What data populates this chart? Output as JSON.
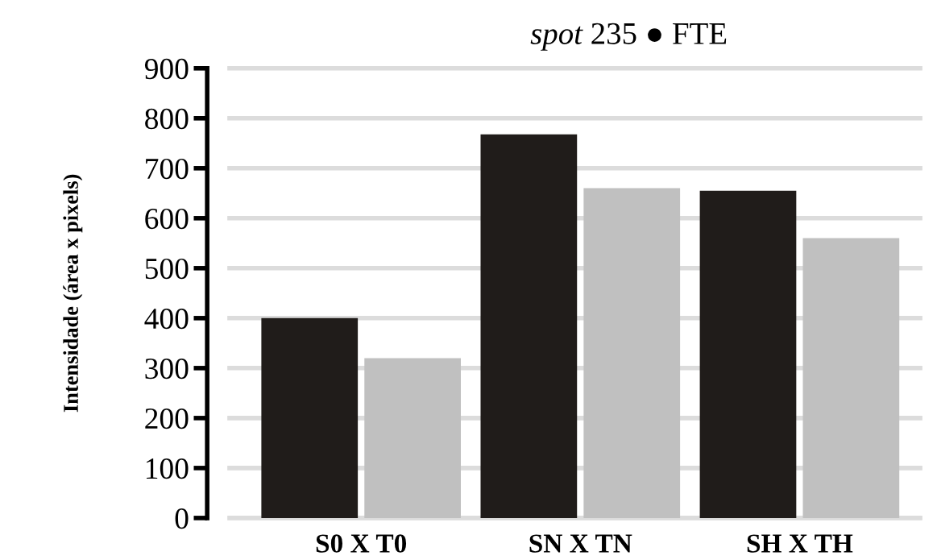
{
  "chart_data": {
    "type": "bar",
    "title": "spot 235 ● FTE",
    "ylabel": "Intensidade (área x pixels)",
    "categories": [
      "S0 X T0",
      "SN X TN",
      "SH X TH"
    ],
    "series": [
      {
        "color": "#201c1a",
        "values": [
          400,
          768,
          655
        ]
      },
      {
        "color": "#c0c0c0",
        "values": [
          320,
          660,
          560
        ]
      }
    ],
    "ylim": [
      0,
      900
    ],
    "yticks": [
      0,
      100,
      200,
      300,
      400,
      500,
      600,
      700,
      800,
      900
    ],
    "grid": "y"
  }
}
